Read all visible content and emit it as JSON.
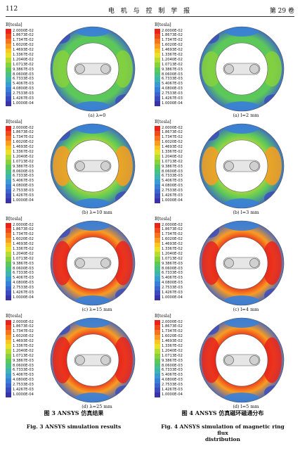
{
  "page": {
    "number": "112",
    "journal": "电 机 与 控 制 学 报",
    "volume": "第 29 卷"
  },
  "legend": {
    "unit": "B[tesla]",
    "values": [
      "2.0000E-02",
      "1.8673E-02",
      "1.7347E-02",
      "1.6020E-02",
      "1.4693E-02",
      "1.3367E-02",
      "1.2040E-02",
      "1.0713E-02",
      "9.3867E-03",
      "8.0600E-03",
      "6.7333E-03",
      "5.4067E-03",
      "4.0800E-03",
      "2.7533E-03",
      "1.4267E-03",
      "1.0000E-04"
    ],
    "colors": [
      "#e8231c",
      "#ef4a1e",
      "#f47220",
      "#f99c22",
      "#fbc624",
      "#e9e12a",
      "#b5db34",
      "#86d13d",
      "#5dc85a",
      "#47c088",
      "#3fb3b1",
      "#3a9bd2",
      "#3a7fd7",
      "#3b64cc",
      "#3b4bbe",
      "#3a33a8"
    ]
  },
  "panels": {
    "left": [
      {
        "label": "(a)  λ=0",
        "level": 0.25
      },
      {
        "label": "(b)  λ=10 mm",
        "level": 0.45
      },
      {
        "label": "(c)  λ=15 mm",
        "level": 0.75
      },
      {
        "label": "(d)  λ=25 mm",
        "level": 0.9
      }
    ],
    "right": [
      {
        "label": "(a) l=2 mm",
        "level": 0.12
      },
      {
        "label": "(b) l=3 mm",
        "level": 0.35
      },
      {
        "label": "(c) l=4 mm",
        "level": 0.7
      },
      {
        "label": "(d) l=5 mm",
        "level": 0.85
      }
    ]
  },
  "captions": {
    "fig3_cn": "图 3   ANSYS 仿真结果",
    "fig3_en": "Fig. 3   ANSYS simulation results",
    "fig4_cn": "图 4   ANSYS 仿真磁环磁通分布",
    "fig4_en": "Fig. 4   ANSYS simulation of magnetic ring flux",
    "fig4_en2": "distribution"
  }
}
